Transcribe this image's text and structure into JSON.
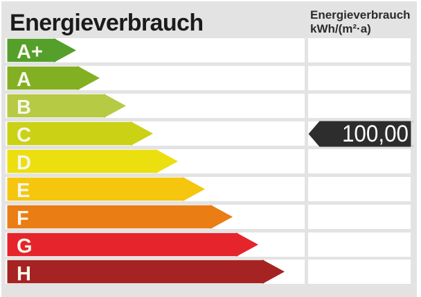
{
  "header": {
    "title": "Energieverbrauch",
    "unit_line1": "Energieverbrauch",
    "unit_line2": "kWh/(m²·a)"
  },
  "scale": {
    "grades": [
      {
        "label": "A+",
        "color": "#54a02a",
        "arrow_end": 110
      },
      {
        "label": "A",
        "color": "#83b022",
        "arrow_end": 144
      },
      {
        "label": "B",
        "color": "#b6ca43",
        "arrow_end": 182
      },
      {
        "label": "C",
        "color": "#cbd115",
        "arrow_end": 221
      },
      {
        "label": "D",
        "color": "#ecdf10",
        "arrow_end": 257
      },
      {
        "label": "E",
        "color": "#f6c50e",
        "arrow_end": 296
      },
      {
        "label": "F",
        "color": "#ea7d13",
        "arrow_end": 336
      },
      {
        "label": "G",
        "color": "#e5242c",
        "arrow_end": 373
      },
      {
        "label": "H",
        "color": "#a52322",
        "arrow_end": 411
      }
    ]
  },
  "value": {
    "text": "100,00",
    "grade": "C",
    "tag_color": "#2d2d2d"
  }
}
